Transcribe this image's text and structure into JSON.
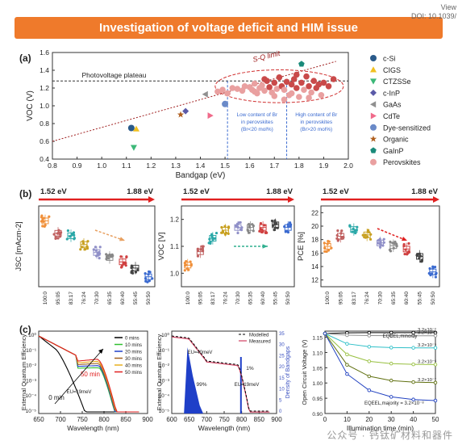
{
  "header": {
    "title": "Investigation of voltage deficit and HIM issue",
    "corner_text_1": "View",
    "corner_text_2": "DOI: 10.1039/"
  },
  "watermark": "公众号 · 钙钛矿材料和器件",
  "colors": {
    "banner": "#ef7a2b",
    "perovskite": "#e9a0a0",
    "perovskite_dark": "#c23b3b",
    "arrow_red": "#e02020"
  },
  "panel_labels": {
    "a": "(a)",
    "b": "(b)",
    "c": "(c)"
  },
  "chart_data": [
    {
      "id": "a",
      "type": "scatter",
      "xlabel": "Bandgap (eV)",
      "ylabel": "VOC (V)",
      "xlim": [
        0.8,
        2.0
      ],
      "ylim": [
        0.4,
        1.6
      ],
      "xticks": [
        "0.8",
        "0.9",
        "1.0",
        "1.1",
        "1.2",
        "1.3",
        "1.4",
        "1.5",
        "1.6",
        "1.7",
        "1.8",
        "1.9",
        "2.0"
      ],
      "yticks": [
        "0.4",
        "0.6",
        "0.8",
        "1.0",
        "1.2",
        "1.4",
        "1.6"
      ],
      "annotations": {
        "sq_limit": "S-Q limit",
        "plateau": "Photovoltage plateau",
        "low_br": [
          "Low content of Br",
          "in perovskites",
          "(Br<20 mol%)"
        ],
        "high_br": [
          "High content of Br",
          "in perovskites",
          "(Br>20 mol%)"
        ]
      },
      "plateau_y": 1.28,
      "low_br_x": 1.51,
      "high_br_x": 1.75,
      "sq_line": [
        [
          0.8,
          0.6
        ],
        [
          1.95,
          1.5
        ]
      ],
      "series": [
        {
          "name": "c-Si",
          "marker": "circle",
          "color": "#2a5a8a",
          "points": [
            [
              1.12,
              0.75
            ]
          ]
        },
        {
          "name": "CIGS",
          "marker": "triangle",
          "color": "#f0c020",
          "points": [
            [
              1.14,
              0.74
            ]
          ]
        },
        {
          "name": "CTZSSe",
          "marker": "triangle-down",
          "color": "#3cb878",
          "points": [
            [
              1.13,
              0.53
            ]
          ]
        },
        {
          "name": "c-InP",
          "marker": "diamond",
          "color": "#5a5aa8",
          "points": [
            [
              1.34,
              0.94
            ]
          ]
        },
        {
          "name": "GaAs",
          "marker": "triangle-left",
          "color": "#909090",
          "points": [
            [
              1.42,
              1.13
            ]
          ]
        },
        {
          "name": "CdTe",
          "marker": "triangle-right",
          "color": "#f06a8a",
          "points": [
            [
              1.44,
              0.89
            ]
          ]
        },
        {
          "name": "Dye-sensitized",
          "marker": "circle",
          "color": "#6a8ac8",
          "points": [
            [
              1.5,
              1.02
            ]
          ]
        },
        {
          "name": "Organic",
          "marker": "star",
          "color": "#b06020",
          "points": [
            [
              1.32,
              0.9
            ]
          ]
        },
        {
          "name": "GaInP",
          "marker": "pentagon",
          "color": "#1a8a7a",
          "points": [
            [
              1.81,
              1.47
            ]
          ]
        },
        {
          "name": "Perovskites",
          "marker": "circle",
          "color": "#e9a0a0",
          "points": [
            [
              1.47,
              1.16
            ],
            [
              1.49,
              1.18
            ],
            [
              1.51,
              1.14
            ],
            [
              1.53,
              1.2
            ],
            [
              1.55,
              1.19
            ],
            [
              1.57,
              1.17
            ],
            [
              1.58,
              1.22
            ],
            [
              1.6,
              1.21
            ],
            [
              1.61,
              1.18
            ],
            [
              1.62,
              1.25
            ],
            [
              1.63,
              1.14
            ],
            [
              1.64,
              1.2
            ],
            [
              1.65,
              1.23
            ],
            [
              1.66,
              1.17
            ],
            [
              1.67,
              1.28
            ],
            [
              1.68,
              1.21
            ],
            [
              1.69,
              1.15
            ],
            [
              1.7,
              1.26
            ],
            [
              1.71,
              1.19
            ],
            [
              1.72,
              1.32
            ],
            [
              1.73,
              1.22
            ],
            [
              1.74,
              1.18
            ],
            [
              1.75,
              1.27
            ],
            [
              1.76,
              1.12
            ],
            [
              1.77,
              1.24
            ],
            [
              1.78,
              1.3
            ],
            [
              1.79,
              1.2
            ],
            [
              1.8,
              1.1
            ],
            [
              1.81,
              1.26
            ],
            [
              1.82,
              1.18
            ],
            [
              1.83,
              1.33
            ],
            [
              1.84,
              1.22
            ],
            [
              1.85,
              1.15
            ],
            [
              1.86,
              1.28
            ],
            [
              1.87,
              1.2
            ],
            [
              1.88,
              1.24
            ],
            [
              1.89,
              1.12
            ],
            [
              1.9,
              1.26
            ],
            [
              1.92,
              1.22
            ],
            [
              1.94,
              1.3
            ],
            [
              1.77,
              1.14
            ],
            [
              1.7,
              1.11
            ],
            [
              1.84,
              1.09
            ],
            [
              1.66,
              1.3
            ],
            [
              1.79,
              1.35
            ],
            [
              1.74,
              1.07
            ],
            [
              1.62,
              1.16
            ]
          ]
        }
      ]
    },
    {
      "id": "b1",
      "type": "box",
      "top_left": "1.52 eV",
      "top_right": "1.88 eV",
      "ylabel": "JSC [mAcm-2]",
      "categories": [
        "100:0",
        "95:05",
        "83:17",
        "76:24",
        "70:30",
        "65:35",
        "60:40",
        "55:45",
        "50:50"
      ],
      "ylim": [
        14,
        27
      ],
      "yticks": [],
      "medians": [
        24.6,
        22.6,
        22.2,
        20.8,
        19.5,
        18.7,
        18.0,
        17.0,
        15.6
      ],
      "colors": [
        "#f0903a",
        "#c06060",
        "#2aa8a8",
        "#c8a020",
        "#9090c8",
        "#888888",
        "#d04040",
        "#444444",
        "#3a6ad0"
      ]
    },
    {
      "id": "b2",
      "type": "box",
      "top_left": "1.52 eV",
      "top_right": "1.88 eV",
      "ylabel": "VOC [V]",
      "categories": [
        "100:0",
        "95:05",
        "83:17",
        "76:24",
        "70:30",
        "65:35",
        "60:40",
        "55:45",
        "50:50"
      ],
      "ylim": [
        0.95,
        1.25
      ],
      "yticks": [
        "1.0",
        "1.1",
        "1.2"
      ],
      "medians": [
        1.03,
        1.08,
        1.13,
        1.16,
        1.17,
        1.17,
        1.17,
        1.18,
        1.17
      ],
      "colors": [
        "#f0903a",
        "#c06060",
        "#2aa8a8",
        "#c8a020",
        "#9090c8",
        "#888888",
        "#d04040",
        "#444444",
        "#3a6ad0"
      ]
    },
    {
      "id": "b3",
      "type": "box",
      "top_left": "1.52 eV",
      "top_right": "1.88 eV",
      "ylabel": "PCE [%]",
      "categories": [
        "100:0",
        "95:05",
        "83:17",
        "76:24",
        "70:30",
        "65:35",
        "60:40",
        "55:45",
        "50:50"
      ],
      "ylim": [
        11,
        23
      ],
      "yticks": [
        "12",
        "14",
        "16",
        "18",
        "20",
        "22"
      ],
      "medians": [
        17.0,
        18.5,
        19.5,
        18.7,
        17.5,
        17.1,
        16.6,
        15.5,
        13.2
      ],
      "colors": [
        "#f0903a",
        "#c06060",
        "#2aa8a8",
        "#c8a020",
        "#9090c8",
        "#888888",
        "#d04040",
        "#444444",
        "#3a6ad0"
      ]
    },
    {
      "id": "c1",
      "type": "line",
      "xlabel": "Wavelength (nm)",
      "ylabel": "External Quantum Efficiency",
      "xlim": [
        650,
        900
      ],
      "xticks": [
        "650",
        "700",
        "750",
        "800",
        "850",
        "900"
      ],
      "yticks": [
        "10⁰",
        "10⁻¹",
        "10⁻²",
        "10⁻³",
        "10⁻⁴",
        "10⁻⁵"
      ],
      "annotations": {
        "t50": "50 min",
        "t0": "0 min",
        "eu": "EU=19meV"
      },
      "series": [
        {
          "name": "0 mins",
          "color": "#000000"
        },
        {
          "name": "10 mins",
          "color": "#30c030"
        },
        {
          "name": "20 mins",
          "color": "#1f3fc8"
        },
        {
          "name": "30 mins",
          "color": "#a06020"
        },
        {
          "name": "40 mins",
          "color": "#e8b020"
        },
        {
          "name": "50 mins",
          "color": "#e02020"
        }
      ]
    },
    {
      "id": "c2",
      "type": "line",
      "xlabel": "Wavelength (nm)",
      "ylabel": "External Quantum Efficiency",
      "ylabel2": "Density of Bandgaps",
      "xlim": [
        600,
        900
      ],
      "xticks": [
        "600",
        "650",
        "700",
        "750",
        "800",
        "850",
        "900"
      ],
      "yticks": [
        "10⁰",
        "10⁻¹",
        "10⁻²",
        "10⁻³",
        "10⁻⁴",
        "10⁻⁵"
      ],
      "yticks2": [
        "0",
        "5",
        "10",
        "15",
        "20",
        "25",
        "30",
        "35"
      ],
      "legend": [
        "Modelled",
        "Measured"
      ],
      "annotations": {
        "eu40": "EU=40meV",
        "eu19": "EU=19meV",
        "p99": "99%",
        "p1": "1%"
      }
    },
    {
      "id": "c3",
      "type": "line",
      "xlabel": "Illumination time (min)",
      "ylabel": "Open Circuit Voltage (V)",
      "xlim": [
        0,
        50
      ],
      "ylim": [
        0.9,
        1.17
      ],
      "xticks": [
        "0",
        "10",
        "20",
        "30",
        "40",
        "50"
      ],
      "yticks": [
        "0.90",
        "0.95",
        "1.00",
        "1.05",
        "1.10",
        "1.15"
      ],
      "annotations": {
        "eqe_minority": "EQEEL,minority",
        "eqe_majority": "EQEEL,majority = 3.2×10⁻⁸"
      },
      "series": [
        {
          "name": "3.2×10⁻²",
          "color": "#000000",
          "plateau": 1.165
        },
        {
          "name": "3.2×10⁻⁴",
          "color": "#909090",
          "plateau": 1.155
        },
        {
          "name": "3.2×10⁻⁵",
          "color": "#30c0c8",
          "plateau": 1.115
        },
        {
          "name": "3.2×10⁻⁶",
          "color": "#98c040",
          "plateau": 1.06
        },
        {
          "name": "3.2×10⁻⁷",
          "color": "#607010",
          "plateau": 1.0
        },
        {
          "name": "",
          "color": "#2040c0",
          "plateau": 0.94
        }
      ]
    }
  ]
}
